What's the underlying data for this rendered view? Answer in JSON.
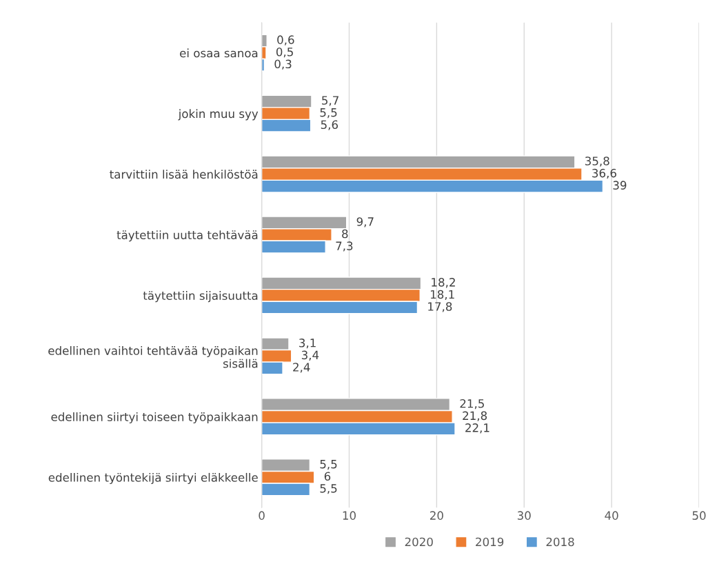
{
  "chart_data": {
    "type": "bar",
    "orientation": "horizontal",
    "categories": [
      "ei osaa sanoa",
      "jokin muu syy",
      "tarvittiin lisää henkilöstöä",
      "täytettiin uutta tehtävää",
      "täytettiin sijaisuutta",
      "edellinen vaihtoi tehtävää työpaikan\nsisällä",
      "edellinen siirtyi toiseen työpaikkaan",
      "edellinen työntekijä siirtyi eläkkeelle"
    ],
    "series": [
      {
        "name": "2020",
        "color": "#a5a5a5",
        "values": [
          0.6,
          5.7,
          35.8,
          9.7,
          18.2,
          3.1,
          21.5,
          5.5
        ],
        "value_labels": [
          "0,6",
          "5,7",
          "35,8",
          "9,7",
          "18,2",
          "3,1",
          "21,5",
          "5,5"
        ]
      },
      {
        "name": "2019",
        "color": "#ed7d31",
        "values": [
          0.5,
          5.5,
          36.6,
          8,
          18.1,
          3.4,
          21.8,
          6
        ],
        "value_labels": [
          "0,5",
          "5,5",
          "36,6",
          "8",
          "18,1",
          "3,4",
          "21,8",
          "6"
        ]
      },
      {
        "name": "2018",
        "color": "#5b9bd5",
        "values": [
          0.3,
          5.6,
          39,
          7.3,
          17.8,
          2.4,
          22.1,
          5.5
        ],
        "value_labels": [
          "0,3",
          "5,6",
          "39",
          "7,3",
          "17,8",
          "2,4",
          "22,1",
          "5,5"
        ]
      }
    ],
    "xlim": [
      0,
      50
    ],
    "xticks": [
      0,
      10,
      20,
      30,
      40,
      50
    ],
    "grid": "x",
    "legend": "bottom"
  }
}
